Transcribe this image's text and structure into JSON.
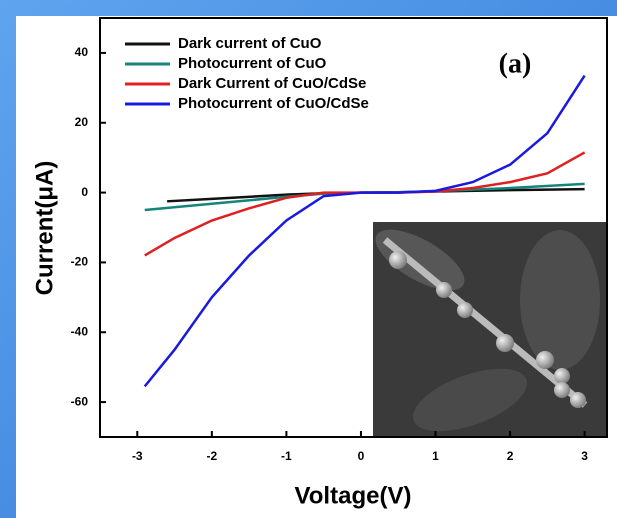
{
  "chart_data": {
    "type": "line",
    "y_label": "Current(μA)",
    "x_label": "Voltage(V)",
    "annotation": "(a)",
    "xlim": [
      -3.5,
      3.3
    ],
    "xticks": [
      -3,
      -2,
      -1,
      0,
      1,
      2,
      3
    ],
    "ylim": [
      -70,
      50
    ],
    "yticks": [
      -60,
      -40,
      -20,
      0,
      20,
      40
    ],
    "series": [
      {
        "name": "Dark current of CuO",
        "color": "#111111",
        "x": [
          -2.6,
          -2,
          -1,
          -0.5,
          0,
          0.5,
          1,
          2,
          3
        ],
        "values": [
          -2.5,
          -1.8,
          -0.6,
          -0.2,
          0,
          0.1,
          0.3,
          0.7,
          1
        ]
      },
      {
        "name": "Photocurrent of CuO",
        "color": "#14857a",
        "x": [
          -2.9,
          -2,
          -1,
          -0.5,
          0,
          0.5,
          1,
          2,
          3
        ],
        "values": [
          -5,
          -3.2,
          -1.2,
          -0.3,
          0,
          0.1,
          0.4,
          1.3,
          2.5
        ]
      },
      {
        "name": "Dark Current of CuO/CdSe",
        "color": "#e02020",
        "x": [
          -2.9,
          -2.5,
          -2,
          -1.5,
          -1,
          -0.5,
          0,
          0.5,
          1,
          1.5,
          2,
          2.5,
          3
        ],
        "values": [
          -18,
          -13,
          -8,
          -4.5,
          -1.5,
          0,
          0,
          0,
          0.3,
          1.3,
          3,
          5.5,
          11.5
        ]
      },
      {
        "name": "Photocurrent of CuO/CdSe",
        "color": "#1a1adf",
        "x": [
          -2.9,
          -2.5,
          -2,
          -1.5,
          -1,
          -0.5,
          0,
          0.5,
          1,
          1.5,
          2,
          2.5,
          3
        ],
        "values": [
          -55.5,
          -45,
          -30,
          -18,
          -8,
          -1,
          0,
          0,
          0.5,
          3,
          8,
          17,
          33.5
        ]
      }
    ]
  }
}
